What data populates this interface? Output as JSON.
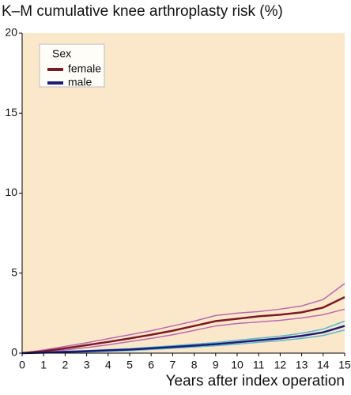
{
  "chart_data": {
    "type": "line",
    "title": "K–M cumulative knee arthroplasty risk (%)",
    "x_label": "Years after index operation",
    "x": [
      0,
      1,
      2,
      3,
      4,
      5,
      6,
      7,
      8,
      9,
      10,
      11,
      12,
      13,
      14,
      15
    ],
    "xlim": [
      0,
      15
    ],
    "xticks": [
      0,
      1,
      2,
      3,
      4,
      5,
      6,
      7,
      8,
      9,
      10,
      11,
      12,
      13,
      14,
      15
    ],
    "ylim": [
      0,
      20
    ],
    "yticks": [
      0,
      5,
      10,
      15,
      20
    ],
    "legend_title": "Sex",
    "legend": "top-left",
    "series": [
      {
        "name": "female",
        "color": "#7b1a24",
        "band_color": "#b86cb0",
        "values": [
          0,
          0.12,
          0.3,
          0.5,
          0.7,
          0.92,
          1.15,
          1.4,
          1.7,
          2.0,
          2.15,
          2.3,
          2.4,
          2.55,
          2.85,
          3.5
        ],
        "lower": [
          0,
          0.05,
          0.2,
          0.35,
          0.52,
          0.72,
          0.92,
          1.15,
          1.42,
          1.7,
          1.85,
          1.95,
          2.05,
          2.2,
          2.4,
          2.75
        ],
        "upper": [
          0,
          0.2,
          0.42,
          0.65,
          0.9,
          1.15,
          1.4,
          1.7,
          2.0,
          2.35,
          2.5,
          2.6,
          2.75,
          2.95,
          3.35,
          4.35
        ]
      },
      {
        "name": "male",
        "color": "#1c1c78",
        "band_color": "#5cb8c8",
        "values": [
          0,
          0.03,
          0.08,
          0.12,
          0.17,
          0.22,
          0.3,
          0.38,
          0.47,
          0.56,
          0.68,
          0.8,
          0.92,
          1.08,
          1.3,
          1.7
        ],
        "lower": [
          0,
          0.01,
          0.05,
          0.08,
          0.12,
          0.16,
          0.23,
          0.3,
          0.38,
          0.46,
          0.56,
          0.68,
          0.78,
          0.92,
          1.1,
          1.45
        ],
        "upper": [
          0,
          0.05,
          0.11,
          0.16,
          0.22,
          0.28,
          0.37,
          0.46,
          0.56,
          0.66,
          0.8,
          0.93,
          1.06,
          1.24,
          1.5,
          2.0
        ]
      }
    ]
  }
}
